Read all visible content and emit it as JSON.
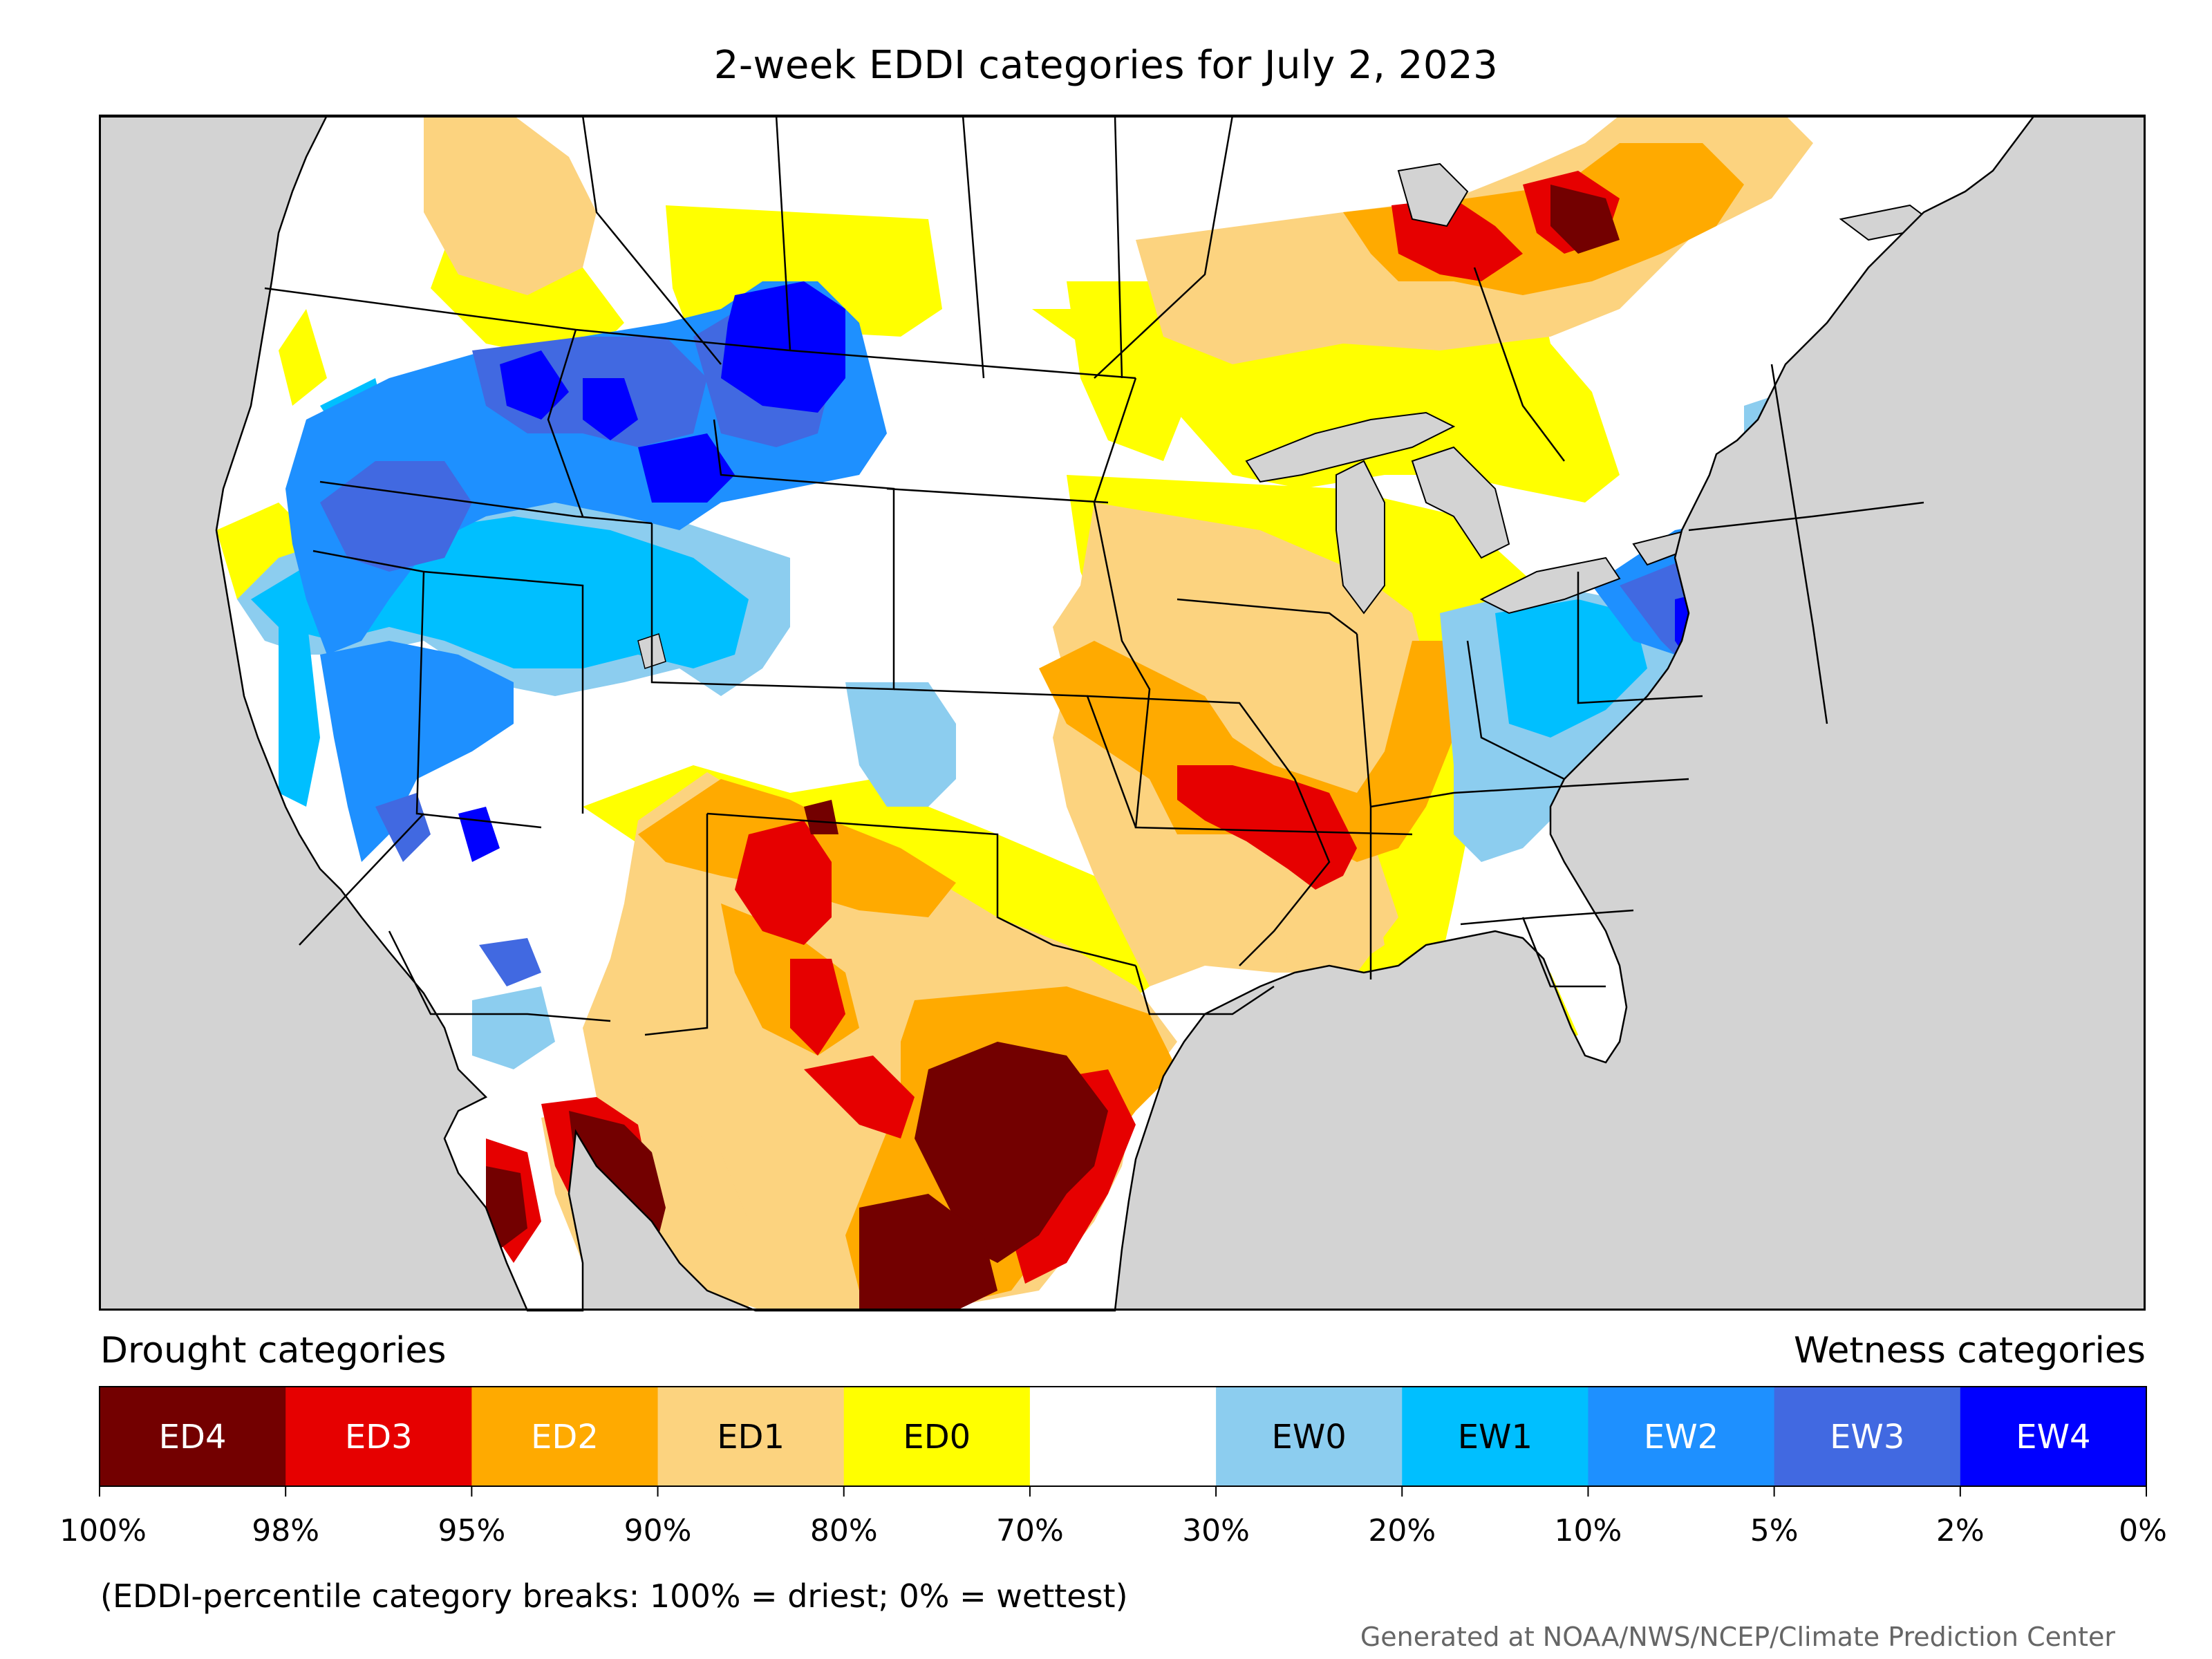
{
  "title": "2-week EDDI categories for July 2, 2023",
  "legend": {
    "drought_heading": "Drought categories",
    "wetness_heading": "Wetness categories",
    "categories": [
      {
        "label": "ED4",
        "color": "#730000",
        "text_color": "#ffffff"
      },
      {
        "label": "ED3",
        "color": "#e60000",
        "text_color": "#ffffff"
      },
      {
        "label": "ED2",
        "color": "#ffaa00",
        "text_color": "#ffffff"
      },
      {
        "label": "ED1",
        "color": "#fcd37f",
        "text_color": "#000000"
      },
      {
        "label": "ED0",
        "color": "#ffff00",
        "text_color": "#000000"
      },
      {
        "label": "",
        "color": "#ffffff",
        "text_color": "#000000"
      },
      {
        "label": "EW0",
        "color": "#8ccdef",
        "text_color": "#000000"
      },
      {
        "label": "EW1",
        "color": "#00bfff",
        "text_color": "#000000"
      },
      {
        "label": "EW2",
        "color": "#1e90ff",
        "text_color": "#ffffff"
      },
      {
        "label": "EW3",
        "color": "#4169e1",
        "text_color": "#ffffff"
      },
      {
        "label": "EW4",
        "color": "#0000ff",
        "text_color": "#ffffff"
      }
    ],
    "ticks": [
      "100%",
      "98%",
      "95%",
      "90%",
      "80%",
      "70%",
      "30%",
      "20%",
      "10%",
      "5%",
      "2%",
      "0%"
    ]
  },
  "note": "(EDDI-percentile category breaks: 100% = driest; 0% = wettest)",
  "credit": "Generated at NOAA/NWS/NCEP/Climate Prediction Center",
  "colors": {
    "ocean": "#d3d3d3",
    "land_no_category": "#ffffff",
    "boundary": "#000000"
  }
}
